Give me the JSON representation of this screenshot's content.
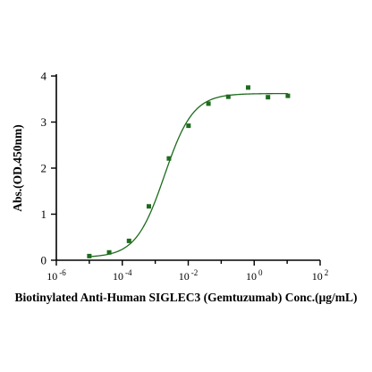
{
  "chart_data": {
    "type": "scatter",
    "title": "",
    "xlabel": "Biotinylated Anti-Human SIGLEC3 (Gemtuzumab) Conc.(μg/mL)",
    "ylabel": "Abs.(OD.450nm)",
    "xscale": "log10",
    "xlim": [
      1e-06,
      100
    ],
    "ylim": [
      0,
      4
    ],
    "xticks": [
      {
        "base": "10",
        "exp": "-6",
        "value": 1e-06
      },
      {
        "base": "10",
        "exp": "-4",
        "value": 0.0001
      },
      {
        "base": "10",
        "exp": "-2",
        "value": 0.01
      },
      {
        "base": "10",
        "exp": "0",
        "value": 1
      },
      {
        "base": "10",
        "exp": "2",
        "value": 100
      }
    ],
    "yticks": [
      0,
      1,
      2,
      3,
      4
    ],
    "grid": false,
    "legend": "none",
    "series": [
      {
        "marker": "square",
        "color": "#1e6b1e",
        "points": [
          {
            "x": 1e-05,
            "y": 0.09
          },
          {
            "x": 4e-05,
            "y": 0.17
          },
          {
            "x": 0.00016,
            "y": 0.42
          },
          {
            "x": 0.00064,
            "y": 1.17
          },
          {
            "x": 0.0026,
            "y": 2.21
          },
          {
            "x": 0.0102,
            "y": 2.92
          },
          {
            "x": 0.041,
            "y": 3.4
          },
          {
            "x": 0.164,
            "y": 3.55
          },
          {
            "x": 0.655,
            "y": 3.75
          },
          {
            "x": 2.62,
            "y": 3.54
          },
          {
            "x": 10.5,
            "y": 3.57
          }
        ]
      }
    ],
    "fit": {
      "model": "4PL",
      "color": "#1e6b1e",
      "bottom": 0.06,
      "top": 3.62,
      "ec50": 0.0019,
      "hill": 1.0,
      "x_range": [
        1e-05,
        10.5
      ]
    }
  }
}
